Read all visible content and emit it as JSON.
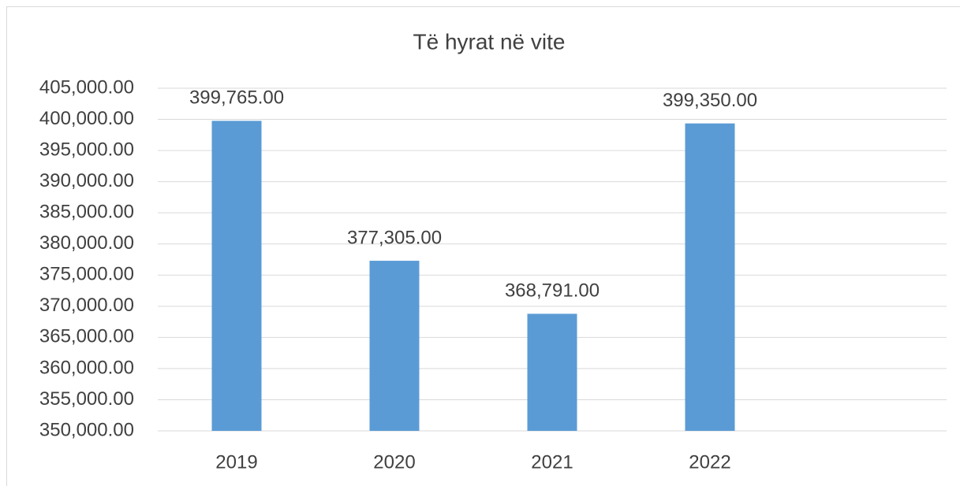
{
  "chart_data": {
    "type": "bar",
    "title": "Të hyrat në vite",
    "categories": [
      "2019",
      "2020",
      "2021",
      "2022",
      null
    ],
    "values": [
      399765,
      377305,
      368791,
      399350,
      null
    ],
    "value_labels": [
      "399,765.00",
      "377,305.00",
      "368,791.00",
      "399,350.00",
      null
    ],
    "color": "#5b9bd5",
    "ylim": [
      350000,
      405000
    ],
    "yticks": [
      {
        "value": 350000,
        "label": "350,000.00"
      },
      {
        "value": 355000,
        "label": "355,000.00"
      },
      {
        "value": 360000,
        "label": "360,000.00"
      },
      {
        "value": 365000,
        "label": "365,000.00"
      },
      {
        "value": 370000,
        "label": "370,000.00"
      },
      {
        "value": 375000,
        "label": "375,000.00"
      },
      {
        "value": 380000,
        "label": "380,000.00"
      },
      {
        "value": 385000,
        "label": "385,000.00"
      },
      {
        "value": 390000,
        "label": "390,000.00"
      },
      {
        "value": 395000,
        "label": "395,000.00"
      },
      {
        "value": 400000,
        "label": "400,000.00"
      },
      {
        "value": 405000,
        "label": "405,000.00"
      }
    ],
    "grid": true
  }
}
